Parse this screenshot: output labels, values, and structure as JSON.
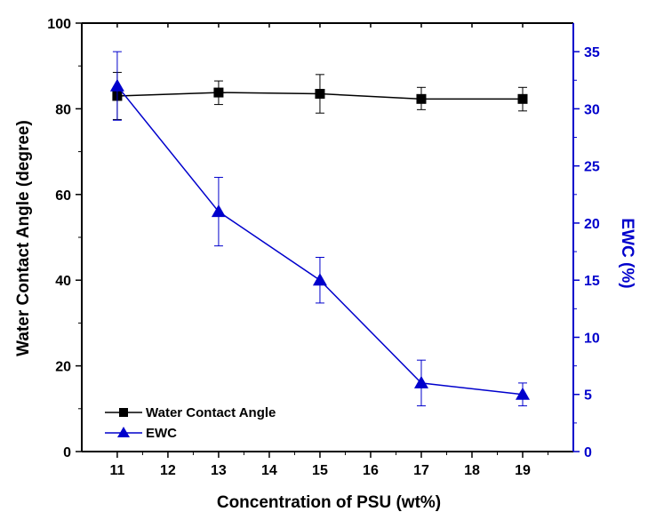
{
  "chart_data": {
    "type": "line",
    "xlabel": "Concentration of PSU (wt%)",
    "ylabel_left": "Water Contact Angle (degree)",
    "ylabel_right": "EWC (%)",
    "xlim": [
      10.3,
      20.0
    ],
    "ylim_left": [
      0,
      100
    ],
    "ylim_right": [
      0,
      37.5
    ],
    "x_ticks": [
      11,
      12,
      13,
      14,
      15,
      16,
      17,
      18,
      19
    ],
    "y_ticks_left": [
      0,
      20,
      40,
      60,
      80,
      100
    ],
    "y_ticks_right": [
      0,
      5,
      10,
      15,
      20,
      25,
      30,
      35
    ],
    "grid": false,
    "legend_position": "bottom-left",
    "series": [
      {
        "name": "Water Contact Angle",
        "axis": "left",
        "marker": "square",
        "color": "#000000",
        "x": [
          11,
          13,
          15,
          17,
          19
        ],
        "y": [
          83,
          83.8,
          83.5,
          82.3,
          82.3
        ],
        "err_low": [
          77.5,
          81.0,
          79.0,
          79.8,
          79.5
        ],
        "err_high": [
          88.5,
          86.5,
          88.0,
          85.0,
          85.0
        ]
      },
      {
        "name": "EWC",
        "axis": "right",
        "marker": "triangle",
        "color": "#0000cc",
        "x": [
          11,
          13,
          15,
          17,
          19
        ],
        "y": [
          32,
          21,
          15,
          6,
          5
        ],
        "err_low": [
          29,
          18,
          13,
          4,
          4
        ],
        "err_high": [
          35,
          24,
          17,
          8,
          6
        ]
      }
    ]
  },
  "colors": {
    "left_axis": "#000000",
    "right_axis": "#0000cc"
  }
}
